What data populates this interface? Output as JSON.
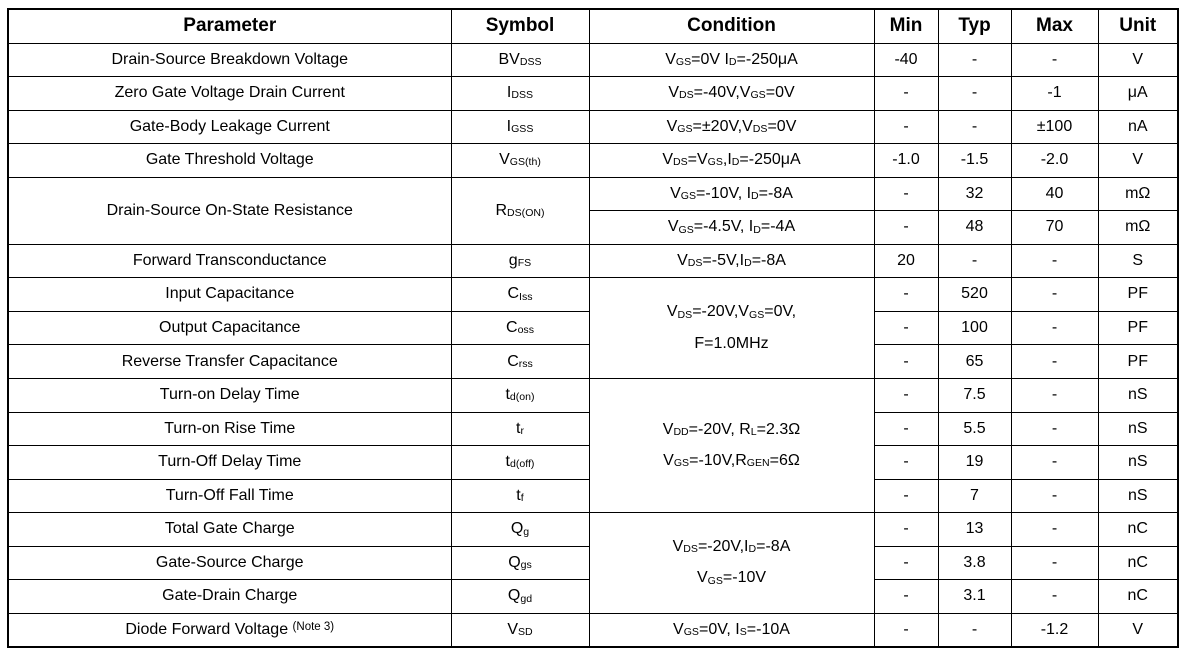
{
  "table": {
    "headers": [
      "Parameter",
      "Symbol",
      "Condition",
      "Min",
      "Typ",
      "Max",
      "Unit"
    ],
    "rows": [
      {
        "param": {
          "text": "Drain-Source Breakdown Voltage"
        },
        "symbol": {
          "rich": "BV~DSS~"
        },
        "cond": {
          "lines": [
            "V~GS~=0V I~D~=-250μA"
          ]
        },
        "min": "-40",
        "typ": "-",
        "max": "-",
        "unit": "V"
      },
      {
        "param": {
          "text": "Zero Gate Voltage Drain Current"
        },
        "symbol": {
          "rich": "I~DSS~"
        },
        "cond": {
          "lines": [
            "V~DS~=-40V,V~GS~=0V"
          ]
        },
        "min": "-",
        "typ": "-",
        "max": "-1",
        "unit": "μA"
      },
      {
        "param": {
          "text": "Gate-Body Leakage Current"
        },
        "symbol": {
          "rich": "I~GSS~"
        },
        "cond": {
          "lines": [
            "V~GS~=±20V,V~DS~=0V"
          ]
        },
        "min": "-",
        "typ": "-",
        "max": "±100",
        "unit": "nA"
      },
      {
        "param": {
          "text": "Gate Threshold Voltage"
        },
        "symbol": {
          "rich": "V~GS(th)~"
        },
        "cond": {
          "lines": [
            "V~DS~=V~GS~,I~D~=-250μA"
          ]
        },
        "min": "-1.0",
        "typ": "-1.5",
        "max": "-2.0",
        "unit": "V"
      },
      {
        "param": {
          "text": "Drain-Source On-State Resistance",
          "rowspan": 2
        },
        "symbol": {
          "rich": "R~DS(ON)~",
          "rowspan": 2
        },
        "cond": {
          "lines": [
            "V~GS~=-10V, I~D~=-8A"
          ]
        },
        "min": "-",
        "typ": "32",
        "max": "40",
        "unit": "mΩ"
      },
      {
        "param": null,
        "symbol": null,
        "cond": {
          "lines": [
            "V~GS~=-4.5V, I~D~=-4A"
          ]
        },
        "min": "-",
        "typ": "48",
        "max": "70",
        "unit": "mΩ"
      },
      {
        "param": {
          "text": "Forward Transconductance"
        },
        "symbol": {
          "rich": "g~FS~"
        },
        "cond": {
          "lines": [
            "V~DS~=-5V,I~D~=-8A"
          ]
        },
        "min": "20",
        "typ": "-",
        "max": "-",
        "unit": "S"
      },
      {
        "param": {
          "text": "Input Capacitance"
        },
        "symbol": {
          "rich": "C~Iss~"
        },
        "cond": {
          "lines": [
            "V~DS~=-20V,V~GS~=0V,",
            "F=1.0MHz"
          ],
          "rowspan": 3
        },
        "min": "-",
        "typ": "520",
        "max": "-",
        "unit": "PF"
      },
      {
        "param": {
          "text": "Output Capacitance"
        },
        "symbol": {
          "rich": "C~oss~"
        },
        "cond": null,
        "min": "-",
        "typ": "100",
        "max": "-",
        "unit": "PF"
      },
      {
        "param": {
          "text": "Reverse Transfer Capacitance"
        },
        "symbol": {
          "rich": "C~rss~"
        },
        "cond": null,
        "min": "-",
        "typ": "65",
        "max": "-",
        "unit": "PF"
      },
      {
        "param": {
          "text": "Turn-on Delay Time"
        },
        "symbol": {
          "rich": "t~d(on)~"
        },
        "cond": {
          "lines": [
            "V~DD~=-20V, R~L~=2.3Ω",
            "V~GS~=-10V,R~GEN~=6Ω"
          ],
          "rowspan": 4
        },
        "min": "-",
        "typ": "7.5",
        "max": "-",
        "unit": "nS"
      },
      {
        "param": {
          "text": "Turn-on Rise Time"
        },
        "symbol": {
          "rich": "t~r~"
        },
        "cond": null,
        "min": "-",
        "typ": "5.5",
        "max": "-",
        "unit": "nS"
      },
      {
        "param": {
          "text": "Turn-Off Delay Time"
        },
        "symbol": {
          "rich": "t~d(off)~"
        },
        "cond": null,
        "min": "-",
        "typ": "19",
        "max": "-",
        "unit": "nS"
      },
      {
        "param": {
          "text": "Turn-Off Fall Time"
        },
        "symbol": {
          "rich": "t~f~"
        },
        "cond": null,
        "min": "-",
        "typ": "7",
        "max": "-",
        "unit": "nS"
      },
      {
        "param": {
          "text": "Total Gate Charge"
        },
        "symbol": {
          "rich": "Q~g~"
        },
        "cond": {
          "lines": [
            "V~DS~=-20V,I~D~=-8A",
            "V~GS~=-10V"
          ],
          "rowspan": 3
        },
        "min": "-",
        "typ": "13",
        "max": "-",
        "unit": "nC"
      },
      {
        "param": {
          "text": "Gate-Source Charge"
        },
        "symbol": {
          "rich": "Q~gs~"
        },
        "cond": null,
        "min": "-",
        "typ": "3.8",
        "max": "-",
        "unit": "nC"
      },
      {
        "param": {
          "text": "Gate-Drain Charge"
        },
        "symbol": {
          "rich": "Q~gd~"
        },
        "cond": null,
        "min": "-",
        "typ": "3.1",
        "max": "-",
        "unit": "nC"
      },
      {
        "param": {
          "text": "Diode Forward Voltage",
          "note": "(Note 3)"
        },
        "symbol": {
          "rich": "V~SD~"
        },
        "cond": {
          "lines": [
            "V~GS~=0V, I~S~=-10A"
          ]
        },
        "min": "-",
        "typ": "-",
        "max": "-1.2",
        "unit": "V"
      }
    ]
  },
  "colors": {
    "text": "#000000",
    "border": "#000000",
    "background": "#ffffff"
  }
}
